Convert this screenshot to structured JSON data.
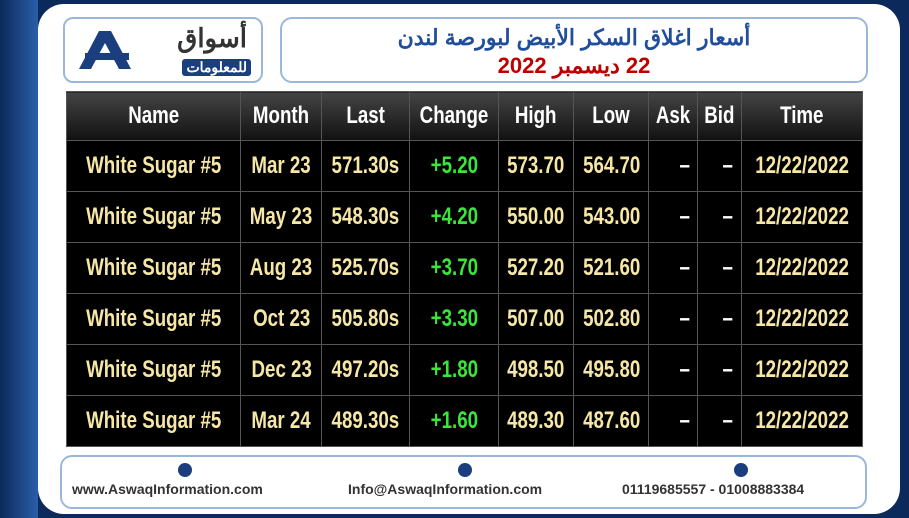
{
  "header": {
    "logo": {
      "name": "أسواق",
      "subtitle": "للمعلومات"
    },
    "title": "أسعار اغلاق السكر الأبيض لبورصة لندن",
    "date": "22 ديسمبر 2022"
  },
  "table": {
    "columns": [
      "Name",
      "Month",
      "Last",
      "Change",
      "High",
      "Low",
      "Ask",
      "Bid",
      "Time"
    ],
    "rows": [
      [
        "White Sugar #5",
        "Mar 23",
        "571.30s",
        "+5.20",
        "573.70",
        "564.70",
        "–",
        "–",
        "12/22/2022"
      ],
      [
        "White Sugar #5",
        "May 23",
        "548.30s",
        "+4.20",
        "550.00",
        "543.00",
        "–",
        "–",
        "12/22/2022"
      ],
      [
        "White Sugar #5",
        "Aug 23",
        "525.70s",
        "+3.70",
        "527.20",
        "521.60",
        "–",
        "–",
        "12/22/2022"
      ],
      [
        "White Sugar #5",
        "Oct 23",
        "505.80s",
        "+3.30",
        "507.00",
        "502.80",
        "–",
        "–",
        "12/22/2022"
      ],
      [
        "White Sugar #5",
        "Dec 23",
        "497.20s",
        "+1.80",
        "498.50",
        "495.80",
        "–",
        "–",
        "12/22/2022"
      ],
      [
        "White Sugar #5",
        "Mar 24",
        "489.30s",
        "+1.60",
        "489.30",
        "487.60",
        "–",
        "–",
        "12/22/2022"
      ]
    ]
  },
  "footer": {
    "website": "www.AswaqInformation.com",
    "email": "Info@AswaqInformation.com",
    "phone": "01119685557 - 01008883384"
  }
}
